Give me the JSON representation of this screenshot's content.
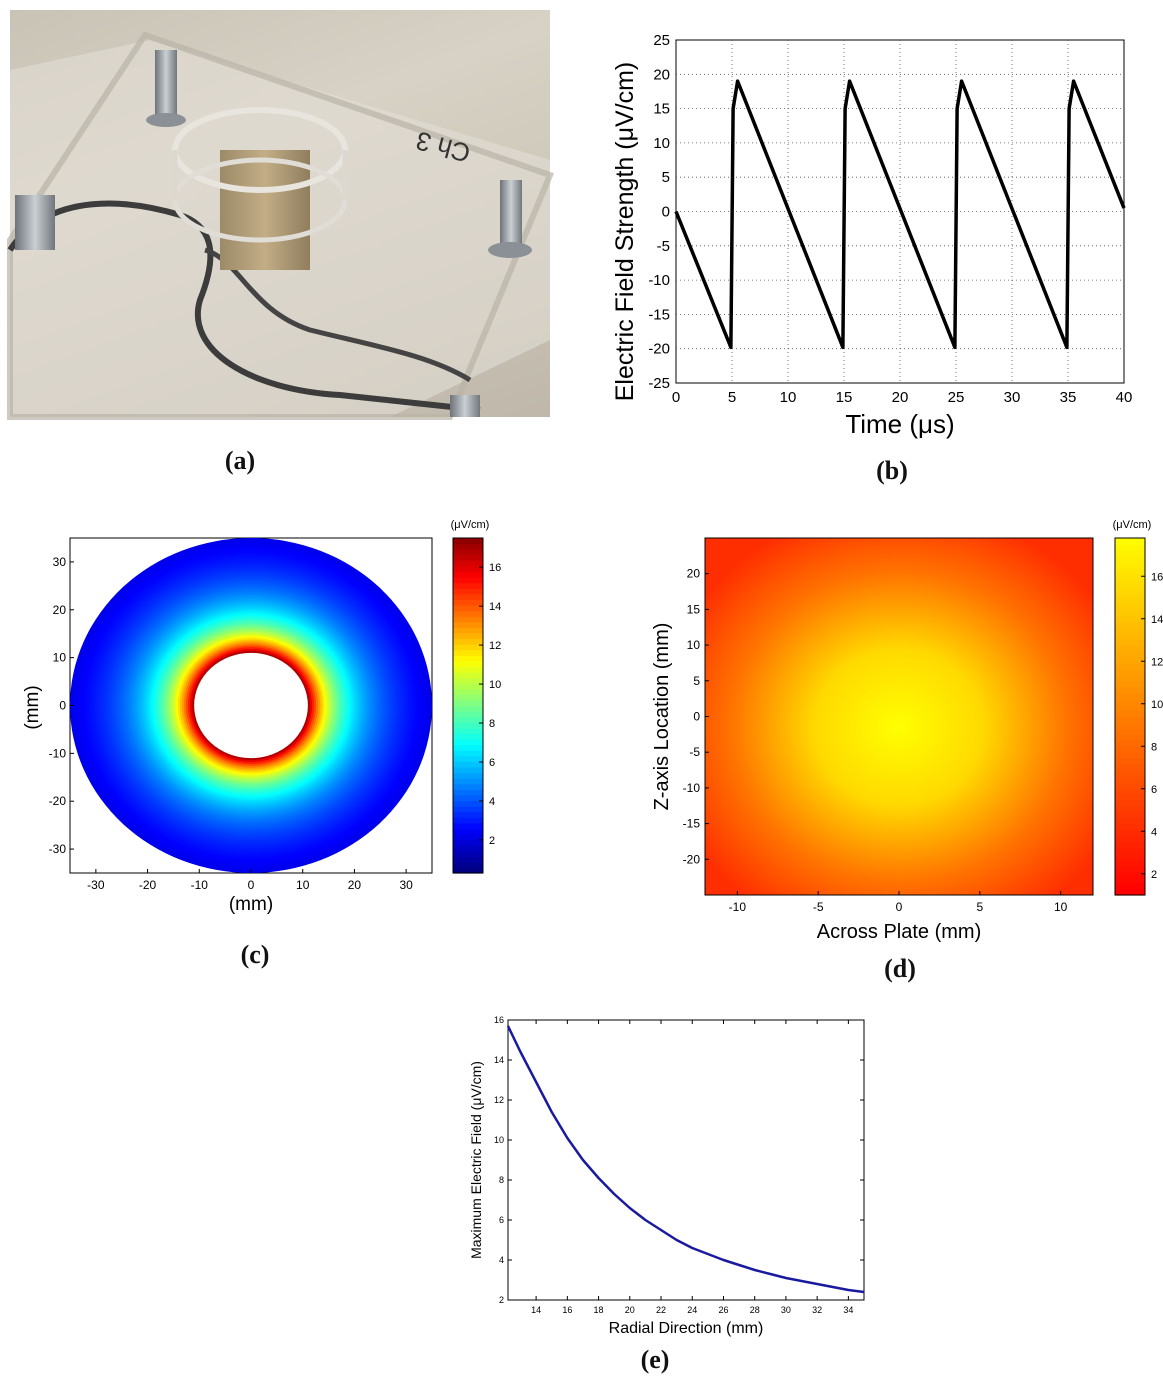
{
  "captions": {
    "a": "(a)",
    "b": "(b)",
    "c": "(c)",
    "d": "(d)",
    "e": "(e)"
  },
  "photo": {
    "handwriting": "Ch 3"
  },
  "colors": {
    "line_b": "#000000",
    "line_e": "#1a1aa0",
    "grid": "#555555"
  },
  "chart_data": [
    {
      "id": "b",
      "type": "line",
      "title": "",
      "xlabel": "Time (μs)",
      "ylabel": "Electric Field Strength (μV/cm)",
      "xlim": [
        0,
        40
      ],
      "ylim": [
        -25,
        25
      ],
      "xticks": [
        0,
        5,
        10,
        15,
        20,
        25,
        30,
        35,
        40
      ],
      "yticks": [
        -25,
        -20,
        -15,
        -10,
        -5,
        0,
        5,
        10,
        15,
        20,
        25
      ],
      "grid": true,
      "series": [
        {
          "x": [
            0,
            4.9,
            5.1,
            5.5,
            14.9,
            15.1,
            15.5,
            24.9,
            25.1,
            25.5,
            34.9,
            35.1,
            35.5,
            40
          ],
          "y": [
            0,
            -19.8,
            15,
            19,
            -19.8,
            15,
            19,
            -19.8,
            15,
            19,
            -19.8,
            15,
            19,
            0.5
          ]
        }
      ]
    },
    {
      "id": "c",
      "type": "heatmap",
      "title": "",
      "xlabel": "(mm)",
      "ylabel": "(mm)",
      "xlim": [
        -35,
        35
      ],
      "ylim": [
        -35,
        35
      ],
      "xticks": [
        -30,
        -20,
        -10,
        0,
        10,
        20,
        30
      ],
      "yticks": [
        -30,
        -20,
        -10,
        0,
        10,
        20,
        30
      ],
      "colorbar_unit": "(μV/cm)",
      "colorbar_ticks": [
        2,
        4,
        6,
        8,
        10,
        12,
        14,
        16
      ],
      "colorbar_range": [
        0.3,
        17.5
      ],
      "colormap": "jet",
      "inner_radius": 11,
      "outer_radius": 35
    },
    {
      "id": "d",
      "type": "heatmap",
      "title": "",
      "xlabel": "Across Plate (mm)",
      "ylabel": "Z-axis Location (mm)",
      "xlim": [
        -12,
        12
      ],
      "ylim": [
        -25,
        25
      ],
      "xticks": [
        -10,
        -5,
        0,
        5,
        10
      ],
      "yticks": [
        -20,
        -15,
        -10,
        -5,
        0,
        5,
        10,
        15,
        20
      ],
      "colorbar_unit": "(μV/cm)",
      "colorbar_ticks": [
        2,
        4,
        6,
        8,
        10,
        12,
        14,
        16
      ],
      "colorbar_range": [
        1,
        17.8
      ],
      "colormap": "autumn"
    },
    {
      "id": "e",
      "type": "line",
      "title": "",
      "xlabel": "Radial Direction (mm)",
      "ylabel": "Maximum Electric Field (μV/cm)",
      "xlim": [
        12.2,
        35
      ],
      "ylim": [
        2,
        16
      ],
      "xticks": [
        14,
        16,
        18,
        20,
        22,
        24,
        26,
        28,
        30,
        32,
        34
      ],
      "yticks": [
        2,
        4,
        6,
        8,
        10,
        12,
        14,
        16
      ],
      "grid": false,
      "series": [
        {
          "x": [
            12.2,
            13,
            14,
            15,
            16,
            17,
            18,
            19,
            20,
            21,
            22,
            23,
            24,
            25,
            26,
            27,
            28,
            29,
            30,
            31,
            32,
            33,
            34,
            35
          ],
          "y": [
            15.7,
            14.4,
            12.9,
            11.4,
            10.1,
            9.0,
            8.1,
            7.3,
            6.6,
            6.0,
            5.5,
            5.0,
            4.6,
            4.3,
            4.0,
            3.75,
            3.5,
            3.3,
            3.1,
            2.95,
            2.8,
            2.65,
            2.5,
            2.4
          ]
        }
      ]
    }
  ]
}
